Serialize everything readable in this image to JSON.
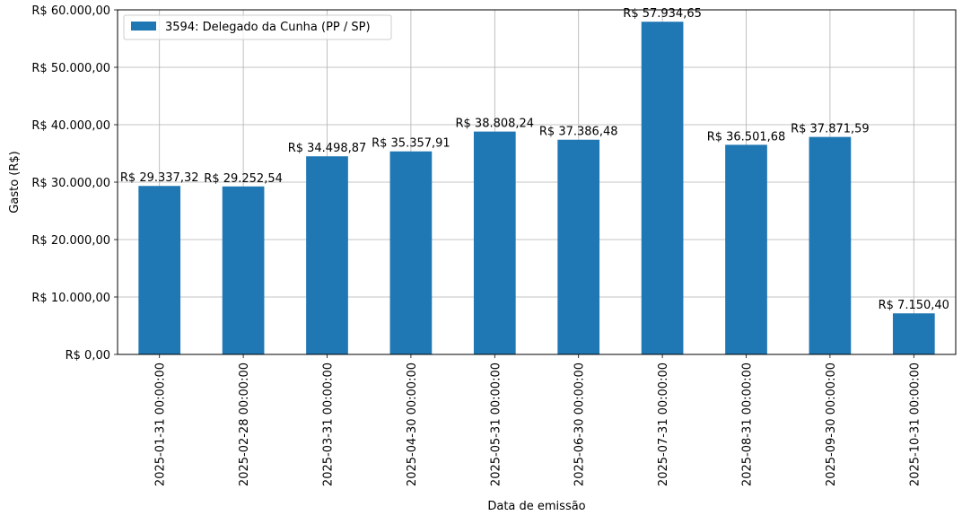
{
  "chart_data": {
    "type": "bar",
    "title": "",
    "xlabel": "Data de emissão",
    "ylabel": "Gasto (R$)",
    "ylim": [
      0,
      60000
    ],
    "y_ticks": [
      0,
      10000,
      20000,
      30000,
      40000,
      50000,
      60000
    ],
    "y_tick_labels": [
      "R$ 0,00",
      "R$ 10.000,00",
      "R$ 20.000,00",
      "R$ 30.000,00",
      "R$ 40.000,00",
      "R$ 50.000,00",
      "R$ 60.000,00"
    ],
    "grid": true,
    "legend_position": "top-left",
    "bar_color": "#1f77b4",
    "categories": [
      "2025-01-31 00:00:00",
      "2025-02-28 00:00:00",
      "2025-03-31 00:00:00",
      "2025-04-30 00:00:00",
      "2025-05-31 00:00:00",
      "2025-06-30 00:00:00",
      "2025-07-31 00:00:00",
      "2025-08-31 00:00:00",
      "2025-09-30 00:00:00",
      "2025-10-31 00:00:00"
    ],
    "series": [
      {
        "name": "3594: Delegado da Cunha (PP / SP)",
        "values": [
          29337.32,
          29252.54,
          34498.87,
          35357.91,
          38808.24,
          37386.48,
          57934.65,
          36501.68,
          37871.59,
          7150.4
        ],
        "data_labels": [
          "R$ 29.337,32",
          "R$ 29.252,54",
          "R$ 34.498,87",
          "R$ 35.357,91",
          "R$ 38.808,24",
          "R$ 37.386,48",
          "R$ 57.934,65",
          "R$ 36.501,68",
          "R$ 37.871,59",
          "R$ 7.150,40"
        ]
      }
    ]
  }
}
